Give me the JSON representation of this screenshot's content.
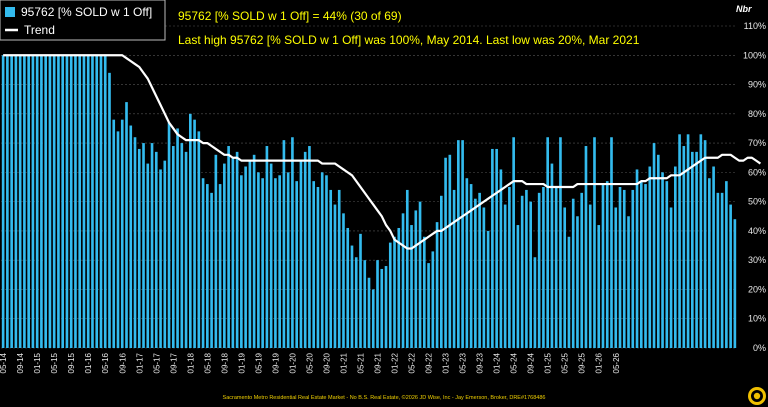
{
  "legend": {
    "bars_label": "95762 [% SOLD w 1 Off]",
    "trend_label": "Trend"
  },
  "annotations": {
    "line1": "95762 [% SOLD w 1 Off] = 44% (30 of 69)",
    "line2": "Last high 95762 [% SOLD w 1 Off] was 100%, May 2014. Last low was 20%, Mar 2021"
  },
  "axis_unit_label": "Nbr",
  "footer": "Sacramento Metro Residential Real Estate Market - No B.S. Real Estate, ©2026 JD Wise, Inc - Jay Emerson, Broker, DRE#1768486",
  "colors": {
    "bar": "#33bbee",
    "trend": "#ffffff",
    "annotation": "#ffff00",
    "background": "#000000"
  },
  "chart_data": {
    "type": "bar",
    "ylim": [
      0,
      110
    ],
    "y_ticks": [
      "0%",
      "10%",
      "20%",
      "30%",
      "40%",
      "50%",
      "60%",
      "70%",
      "80%",
      "90%",
      "100%",
      "110%"
    ],
    "x_tick_labels": [
      "05-14",
      "09-14",
      "01-15",
      "05-15",
      "09-15",
      "01-16",
      "05-16",
      "09-16",
      "01-17",
      "05-17",
      "09-17",
      "01-18",
      "05-18",
      "09-18",
      "01-19",
      "05-19",
      "09-19",
      "01-20",
      "05-20",
      "09-20",
      "01-21",
      "05-21",
      "09-21",
      "01-22",
      "05-22",
      "09-22",
      "01-23",
      "05-23",
      "09-23",
      "01-24",
      "05-24",
      "09-24",
      "01-25",
      "05-25",
      "09-25",
      "01-26",
      "05-26"
    ],
    "x_tick_every": 4,
    "grid": true,
    "legend_position": "top-left",
    "series": [
      {
        "name": "95762 [% SOLD w 1 Off]",
        "kind": "bar",
        "values": [
          100,
          100,
          100,
          100,
          100,
          100,
          100,
          100,
          100,
          100,
          100,
          100,
          100,
          100,
          100,
          100,
          100,
          100,
          100,
          100,
          100,
          100,
          100,
          100,
          100,
          94,
          78,
          74,
          78,
          84,
          76,
          72,
          68,
          70,
          63,
          70,
          67,
          61,
          64,
          77,
          69,
          75,
          70,
          67,
          80,
          78,
          74,
          58,
          56,
          53,
          66,
          56,
          63,
          69,
          65,
          67,
          59,
          62,
          64,
          66,
          60,
          58,
          69,
          63,
          58,
          59,
          71,
          60,
          72,
          57,
          64,
          67,
          69,
          57,
          55,
          60,
          59,
          54,
          49,
          54,
          46,
          41,
          35,
          31,
          39,
          30,
          24,
          20,
          30,
          27,
          28,
          36,
          38,
          41,
          46,
          54,
          42,
          47,
          50,
          38,
          29,
          33,
          43,
          52,
          65,
          66,
          54,
          71,
          71,
          58,
          56,
          51,
          53,
          48,
          40,
          68,
          68,
          61,
          49,
          55,
          72,
          42,
          52,
          54,
          50,
          31,
          53,
          55,
          72,
          63,
          55,
          72,
          48,
          38,
          51,
          45,
          53,
          69,
          49,
          72,
          42,
          56,
          57,
          72,
          48,
          55,
          54,
          45,
          54,
          61,
          57,
          56,
          62,
          70,
          66,
          60,
          57,
          48,
          62,
          73,
          69,
          73,
          67,
          67,
          73,
          71,
          58,
          62,
          53,
          53,
          57,
          49,
          44
        ]
      },
      {
        "name": "Trend",
        "kind": "line",
        "values": [
          100,
          100,
          100,
          100,
          100,
          100,
          100,
          100,
          100,
          100,
          100,
          100,
          100,
          100,
          100,
          100,
          100,
          100,
          100,
          100,
          100,
          100,
          100,
          100,
          100,
          100,
          100,
          100,
          100,
          99,
          98,
          97,
          96,
          94,
          92,
          89,
          86,
          83,
          80,
          77,
          75,
          73,
          72,
          71,
          71,
          71,
          71,
          70,
          70,
          69,
          68,
          67,
          66,
          66,
          65,
          65,
          64,
          64,
          64,
          64,
          64,
          64,
          64,
          64,
          64,
          64,
          64,
          64,
          64,
          64,
          64,
          64,
          64,
          64,
          64,
          63,
          63,
          63,
          63,
          62,
          61,
          60,
          59,
          57,
          55,
          53,
          51,
          49,
          47,
          45,
          42,
          40,
          37,
          36,
          35,
          34,
          34,
          35,
          36,
          37,
          38,
          39,
          40,
          40,
          41,
          42,
          43,
          44,
          45,
          46,
          47,
          48,
          49,
          50,
          51,
          52,
          53,
          54,
          55,
          56,
          57,
          57,
          57,
          56,
          56,
          56,
          56,
          56,
          55,
          55,
          55,
          55,
          55,
          55,
          55,
          56,
          56,
          56,
          56,
          56,
          56,
          56,
          56,
          56,
          56,
          56,
          56,
          56,
          56,
          56,
          57,
          57,
          58,
          58,
          58,
          58,
          58,
          59,
          59,
          59,
          60,
          61,
          62,
          63,
          64,
          65,
          65,
          65,
          65,
          66,
          66,
          66,
          65,
          64,
          64,
          65,
          65,
          64,
          63
        ]
      }
    ]
  }
}
